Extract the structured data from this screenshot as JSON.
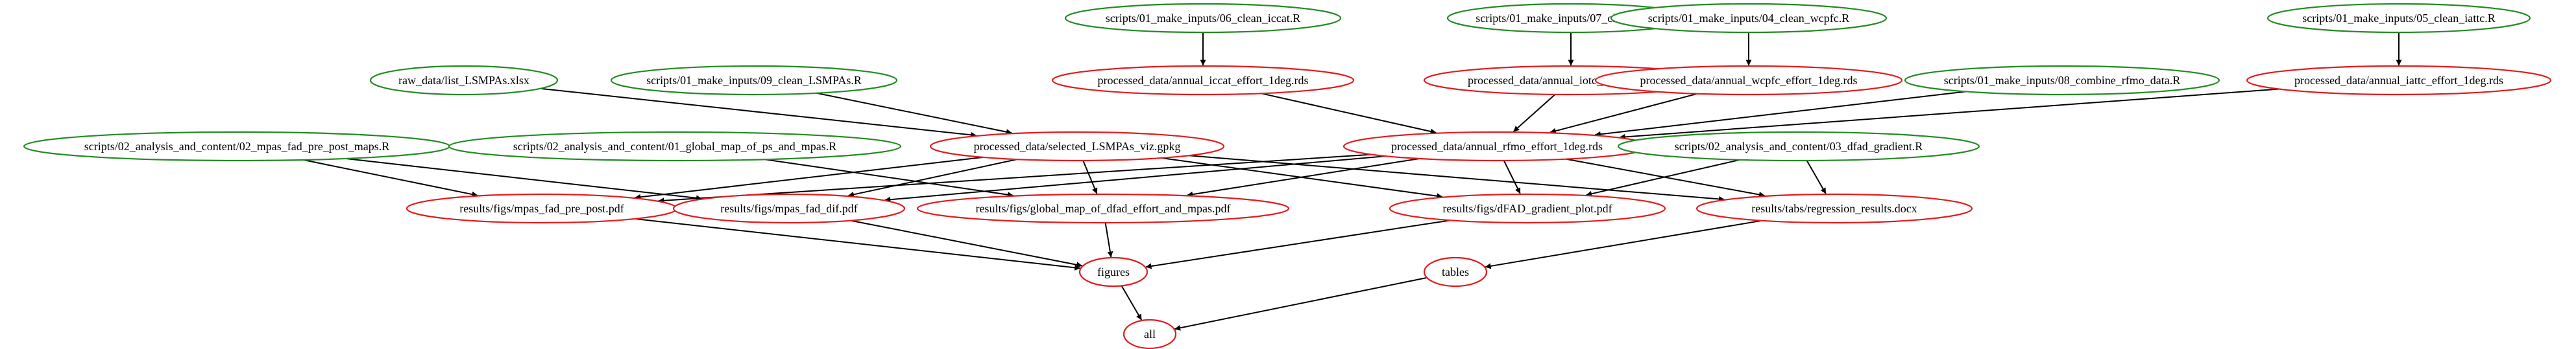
{
  "diagram": {
    "colors": {
      "script": "#228B22",
      "output": "#E41A1C",
      "edge": "#000000",
      "background": "#FFFFFF"
    },
    "nodes": [
      {
        "id": "s06",
        "label": "scripts/01_make_inputs/06_clean_iccat.R",
        "kind": "script"
      },
      {
        "id": "s07",
        "label": "scripts/01_make_inputs/07_clean_iotc.R",
        "kind": "script"
      },
      {
        "id": "s04",
        "label": "scripts/01_make_inputs/04_clean_wcpfc.R",
        "kind": "script"
      },
      {
        "id": "s05",
        "label": "scripts/01_make_inputs/05_clean_iattc.R",
        "kind": "script"
      },
      {
        "id": "rawl",
        "label": "raw_data/list_LSMPAs.xlsx",
        "kind": "script"
      },
      {
        "id": "s09",
        "label": "scripts/01_make_inputs/09_clean_LSMPAs.R",
        "kind": "script"
      },
      {
        "id": "p_iccat",
        "label": "processed_data/annual_iccat_effort_1deg.rds",
        "kind": "output"
      },
      {
        "id": "p_iotc",
        "label": "processed_data/annual_iotc_effort_1deg.rds",
        "kind": "output"
      },
      {
        "id": "p_wcpfc",
        "label": "processed_data/annual_wcpfc_effort_1deg.rds",
        "kind": "output"
      },
      {
        "id": "s08",
        "label": "scripts/01_make_inputs/08_combine_rfmo_data.R",
        "kind": "script"
      },
      {
        "id": "p_iattc",
        "label": "processed_data/annual_iattc_effort_1deg.rds",
        "kind": "output"
      },
      {
        "id": "s02",
        "label": "scripts/02_analysis_and_content/02_mpas_fad_pre_post_maps.R",
        "kind": "script"
      },
      {
        "id": "s01",
        "label": "scripts/02_analysis_and_content/01_global_map_of_ps_and_mpas.R",
        "kind": "script"
      },
      {
        "id": "p_sel",
        "label": "processed_data/selected_LSMPAs_viz.gpkg",
        "kind": "output"
      },
      {
        "id": "p_rfmo",
        "label": "processed_data/annual_rfmo_effort_1deg.rds",
        "kind": "output"
      },
      {
        "id": "s03",
        "label": "scripts/02_analysis_and_content/03_dfad_gradient.R",
        "kind": "script"
      },
      {
        "id": "f_prepost",
        "label": "results/figs/mpas_fad_pre_post.pdf",
        "kind": "output"
      },
      {
        "id": "f_dif",
        "label": "results/figs/mpas_fad_dif.pdf",
        "kind": "output"
      },
      {
        "id": "f_global",
        "label": "results/figs/global_map_of_dfad_effort_and_mpas.pdf",
        "kind": "output"
      },
      {
        "id": "f_grad",
        "label": "results/figs/dFAD_gradient_plot.pdf",
        "kind": "output"
      },
      {
        "id": "t_reg",
        "label": "results/tabs/regression_results.docx",
        "kind": "output"
      },
      {
        "id": "figures",
        "label": "figures",
        "kind": "output"
      },
      {
        "id": "tables",
        "label": "tables",
        "kind": "output"
      },
      {
        "id": "all",
        "label": "all",
        "kind": "output"
      }
    ],
    "edges": [
      [
        "s06",
        "p_iccat"
      ],
      [
        "s07",
        "p_iotc"
      ],
      [
        "s04",
        "p_wcpfc"
      ],
      [
        "s05",
        "p_iattc"
      ],
      [
        "rawl",
        "p_sel"
      ],
      [
        "s09",
        "p_sel"
      ],
      [
        "p_iccat",
        "p_rfmo"
      ],
      [
        "p_iotc",
        "p_rfmo"
      ],
      [
        "p_wcpfc",
        "p_rfmo"
      ],
      [
        "s08",
        "p_rfmo"
      ],
      [
        "p_iattc",
        "p_rfmo"
      ],
      [
        "s02",
        "f_prepost"
      ],
      [
        "s02",
        "f_dif"
      ],
      [
        "s01",
        "f_global"
      ],
      [
        "p_sel",
        "f_prepost"
      ],
      [
        "p_sel",
        "f_dif"
      ],
      [
        "p_sel",
        "f_global"
      ],
      [
        "p_sel",
        "f_grad"
      ],
      [
        "p_sel",
        "t_reg"
      ],
      [
        "p_rfmo",
        "f_prepost"
      ],
      [
        "p_rfmo",
        "f_dif"
      ],
      [
        "p_rfmo",
        "f_global"
      ],
      [
        "p_rfmo",
        "f_grad"
      ],
      [
        "p_rfmo",
        "t_reg"
      ],
      [
        "s03",
        "f_grad"
      ],
      [
        "s03",
        "t_reg"
      ],
      [
        "f_prepost",
        "figures"
      ],
      [
        "f_dif",
        "figures"
      ],
      [
        "f_global",
        "figures"
      ],
      [
        "f_grad",
        "figures"
      ],
      [
        "t_reg",
        "tables"
      ],
      [
        "figures",
        "all"
      ],
      [
        "tables",
        "all"
      ]
    ]
  }
}
